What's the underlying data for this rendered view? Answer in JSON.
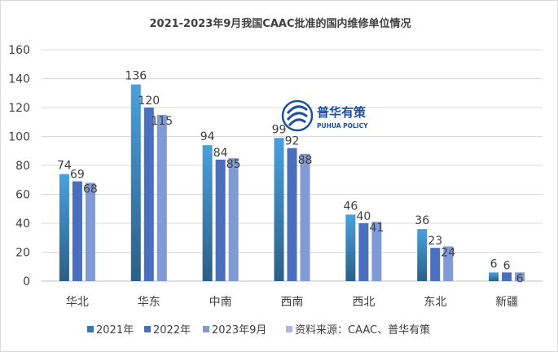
{
  "chart_data": {
    "type": "bar",
    "title": "2021-2023年9月我国CAAC批准的国内维修单位情况",
    "categories": [
      "华北",
      "华东",
      "中南",
      "西南",
      "西北",
      "东北",
      "新疆"
    ],
    "series": [
      {
        "name": "2021年",
        "values": [
          74,
          136,
          94,
          99,
          46,
          36,
          6
        ],
        "color": "#3a78b4"
      },
      {
        "name": "2022年",
        "values": [
          69,
          120,
          84,
          92,
          40,
          23,
          6
        ],
        "color": "#4a6fbf"
      },
      {
        "name": "2023年9月",
        "values": [
          68,
          115,
          85,
          88,
          41,
          24,
          6
        ],
        "color": "#7f9ad4"
      }
    ],
    "ylim": [
      0,
      160
    ],
    "yticks": [
      0,
      20,
      40,
      60,
      80,
      100,
      120,
      140,
      160
    ],
    "grid": true,
    "legend_position": "bottom",
    "source_note": "资料来源：CAAC、普华有策",
    "source_color": "#a9b8dc"
  },
  "watermark": {
    "cn": "普华有策",
    "en": "PUHUA POLICY"
  }
}
